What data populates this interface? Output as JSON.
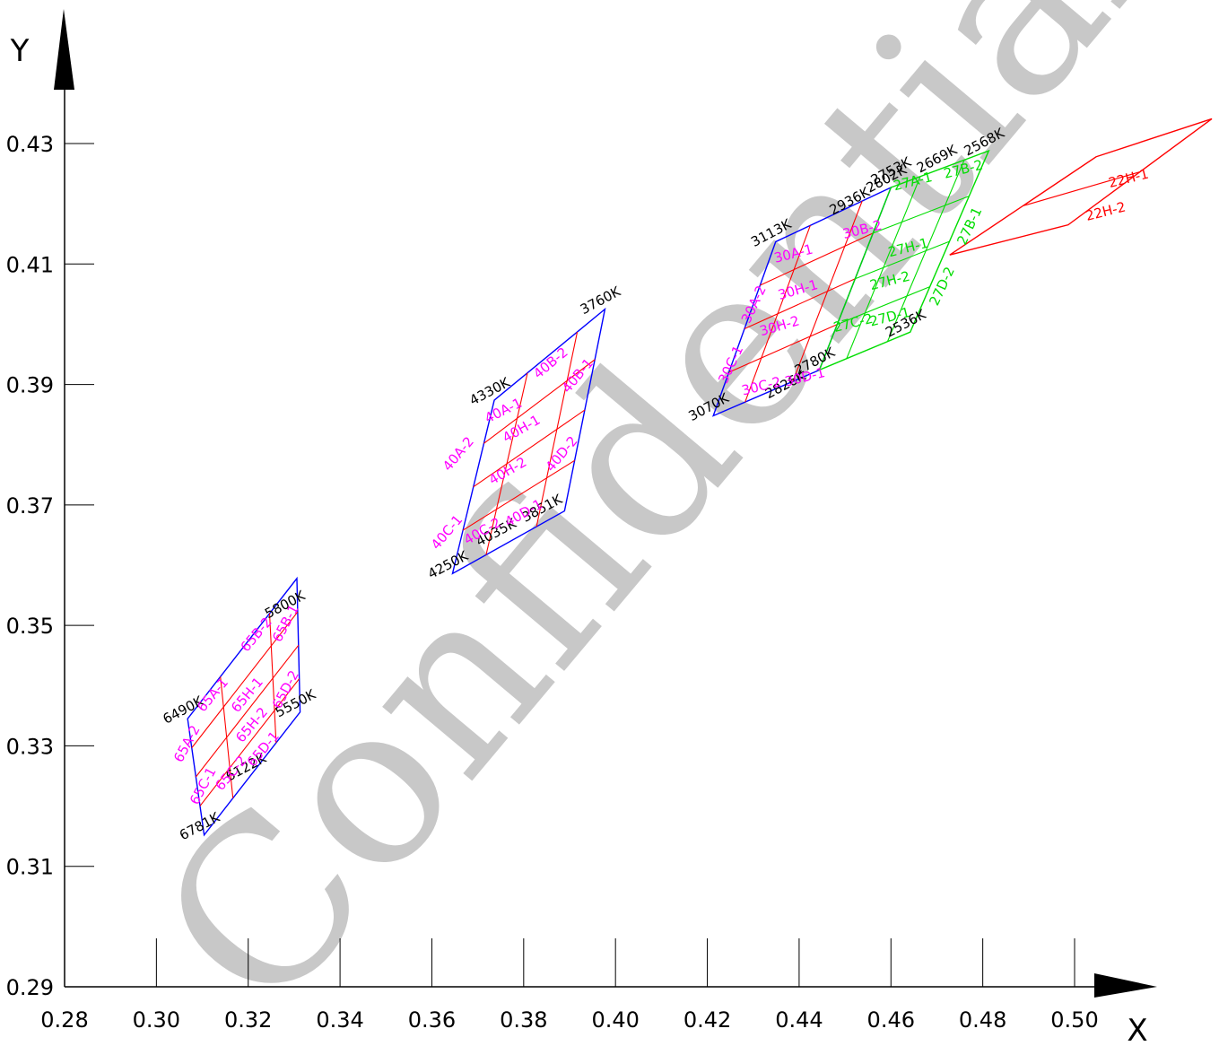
{
  "chart_data": {
    "type": "scatter",
    "title": "",
    "xlabel": "X",
    "ylabel": "Y",
    "xlim": [
      0.28,
      0.51
    ],
    "ylim": [
      0.29,
      0.43
    ],
    "x_ticks": [
      "0.28",
      "0.30",
      "0.32",
      "0.34",
      "0.36",
      "0.38",
      "0.40",
      "0.42",
      "0.44",
      "0.46",
      "0.48",
      "0.50"
    ],
    "y_ticks": [
      "0.29",
      "0.31",
      "0.33",
      "0.35",
      "0.37",
      "0.39",
      "0.41",
      "0.43"
    ],
    "watermark": "Confidential",
    "colors": {
      "blue": "#0000ff",
      "red": "#ff0000",
      "green": "#00dd00",
      "magenta": "#ff00ff",
      "axis": "#000000",
      "watermark": "#c8c8c8"
    },
    "quadrangles": [
      {
        "group": "65",
        "color": "blue",
        "points": [
          [
            0.3068,
            0.3345
          ],
          [
            0.3306,
            0.3578
          ],
          [
            0.3313,
            0.3356
          ],
          [
            0.3104,
            0.3152
          ]
        ]
      },
      {
        "group": "40",
        "color": "blue",
        "points": [
          [
            0.3736,
            0.3874
          ],
          [
            0.3977,
            0.4025
          ],
          [
            0.3889,
            0.369
          ],
          [
            0.3645,
            0.3586
          ]
        ]
      },
      {
        "group": "30",
        "color": "blue",
        "points": [
          [
            0.4349,
            0.4137
          ],
          [
            0.46,
            0.4227
          ],
          [
            0.4444,
            0.3924
          ],
          [
            0.4213,
            0.3848
          ]
        ]
      },
      {
        "group": "27",
        "color": "green",
        "points": [
          [
            0.46,
            0.4227
          ],
          [
            0.4813,
            0.4288
          ],
          [
            0.4642,
            0.3987
          ],
          [
            0.4444,
            0.3924
          ]
        ]
      },
      {
        "group": "22",
        "color": "red",
        "points": [
          [
            0.5047,
            0.4278
          ],
          [
            0.5299,
            0.4341
          ],
          [
            0.4986,
            0.4165
          ],
          [
            0.4728,
            0.4115
          ]
        ]
      }
    ],
    "point_labels": [
      {
        "text": "6490K",
        "x": 0.3068,
        "y": 0.3345
      },
      {
        "text": "5800K",
        "x": 0.329,
        "y": 0.352
      },
      {
        "text": "5550K",
        "x": 0.3313,
        "y": 0.3356
      },
      {
        "text": "6122K",
        "x": 0.3205,
        "y": 0.325
      },
      {
        "text": "6781K",
        "x": 0.3104,
        "y": 0.3152
      },
      {
        "text": "4330K",
        "x": 0.3736,
        "y": 0.3874
      },
      {
        "text": "3760K",
        "x": 0.3977,
        "y": 0.4025
      },
      {
        "text": "3851K",
        "x": 0.385,
        "y": 0.368
      },
      {
        "text": "4035K",
        "x": 0.375,
        "y": 0.364
      },
      {
        "text": "4250K",
        "x": 0.3645,
        "y": 0.3586
      },
      {
        "text": "3113K",
        "x": 0.4349,
        "y": 0.4137
      },
      {
        "text": "2936K",
        "x": 0.452,
        "y": 0.419
      },
      {
        "text": "2802K",
        "x": 0.46,
        "y": 0.4227
      },
      {
        "text": "2753K",
        "x": 0.461,
        "y": 0.424
      },
      {
        "text": "2669K",
        "x": 0.471,
        "y": 0.426
      },
      {
        "text": "2568K",
        "x": 0.4813,
        "y": 0.4288
      },
      {
        "text": "2536K",
        "x": 0.4642,
        "y": 0.3987
      },
      {
        "text": "2780K",
        "x": 0.4444,
        "y": 0.3924
      },
      {
        "text": "2826K",
        "x": 0.438,
        "y": 0.3885
      },
      {
        "text": "3070K",
        "x": 0.4213,
        "y": 0.3848
      }
    ],
    "bin_labels": [
      {
        "text": "65A-1",
        "color": "magenta",
        "x": 0.313,
        "y": 0.338,
        "angle": -50
      },
      {
        "text": "65A-2",
        "color": "magenta",
        "x": 0.3075,
        "y": 0.33,
        "angle": -62
      },
      {
        "text": "65B-2",
        "color": "magenta",
        "x": 0.3225,
        "y": 0.348,
        "angle": -50
      },
      {
        "text": "65B-1",
        "color": "magenta",
        "x": 0.329,
        "y": 0.35,
        "angle": -62
      },
      {
        "text": "65H-1",
        "color": "magenta",
        "x": 0.3205,
        "y": 0.338,
        "angle": -50
      },
      {
        "text": "65H-2",
        "color": "magenta",
        "x": 0.3215,
        "y": 0.333,
        "angle": -50
      },
      {
        "text": "65C-1",
        "color": "magenta",
        "x": 0.311,
        "y": 0.323,
        "angle": -62
      },
      {
        "text": "65C-2",
        "color": "magenta",
        "x": 0.317,
        "y": 0.325,
        "angle": -50
      },
      {
        "text": "65D-1",
        "color": "magenta",
        "x": 0.324,
        "y": 0.329,
        "angle": -50
      },
      {
        "text": "65D-2",
        "color": "magenta",
        "x": 0.329,
        "y": 0.339,
        "angle": -62
      },
      {
        "text": "40A-1",
        "color": "magenta",
        "x": 0.376,
        "y": 0.385,
        "angle": -26
      },
      {
        "text": "40A-2",
        "color": "magenta",
        "x": 0.3665,
        "y": 0.378,
        "angle": -50
      },
      {
        "text": "40B-2",
        "color": "magenta",
        "x": 0.3865,
        "y": 0.393,
        "angle": -40
      },
      {
        "text": "40B-1",
        "color": "magenta",
        "x": 0.3925,
        "y": 0.391,
        "angle": -50
      },
      {
        "text": "40H-1",
        "color": "magenta",
        "x": 0.38,
        "y": 0.382,
        "angle": -30
      },
      {
        "text": "40H-2",
        "color": "magenta",
        "x": 0.377,
        "y": 0.375,
        "angle": -30
      },
      {
        "text": "40D-2",
        "color": "magenta",
        "x": 0.389,
        "y": 0.378,
        "angle": -50
      },
      {
        "text": "40C-1",
        "color": "magenta",
        "x": 0.364,
        "y": 0.365,
        "angle": -50
      },
      {
        "text": "40C-2",
        "color": "magenta",
        "x": 0.3715,
        "y": 0.365,
        "angle": -30
      },
      {
        "text": "40D-1",
        "color": "magenta",
        "x": 0.3805,
        "y": 0.368,
        "angle": -30
      },
      {
        "text": "30A-1",
        "color": "magenta",
        "x": 0.439,
        "y": 0.411,
        "angle": -14
      },
      {
        "text": "30A-2",
        "color": "magenta",
        "x": 0.431,
        "y": 0.403,
        "angle": -65
      },
      {
        "text": "30B-2",
        "color": "magenta",
        "x": 0.454,
        "y": 0.415,
        "angle": -14
      },
      {
        "text": "30H-1",
        "color": "magenta",
        "x": 0.44,
        "y": 0.405,
        "angle": -16
      },
      {
        "text": "30H-2",
        "color": "magenta",
        "x": 0.436,
        "y": 0.399,
        "angle": -16
      },
      {
        "text": "30C-1",
        "color": "magenta",
        "x": 0.426,
        "y": 0.393,
        "angle": -65
      },
      {
        "text": "30C-2",
        "color": "magenta",
        "x": 0.432,
        "y": 0.389,
        "angle": -14
      },
      {
        "text": "30D-1",
        "color": "magenta",
        "x": 0.4415,
        "y": 0.3905,
        "angle": -14
      },
      {
        "text": "27A-1",
        "color": "green",
        "x": 0.465,
        "y": 0.423,
        "angle": -14
      },
      {
        "text": "27B-2",
        "color": "green",
        "x": 0.476,
        "y": 0.425,
        "angle": -14
      },
      {
        "text": "27B-1",
        "color": "green",
        "x": 0.478,
        "y": 0.416,
        "angle": -65
      },
      {
        "text": "27H-1",
        "color": "green",
        "x": 0.464,
        "y": 0.412,
        "angle": -14
      },
      {
        "text": "27H-2",
        "color": "green",
        "x": 0.46,
        "y": 0.4065,
        "angle": -14
      },
      {
        "text": "27C-2",
        "color": "green",
        "x": 0.452,
        "y": 0.3995,
        "angle": -14
      },
      {
        "text": "27D-1",
        "color": "green",
        "x": 0.46,
        "y": 0.4005,
        "angle": -14
      },
      {
        "text": "27D-2",
        "color": "green",
        "x": 0.472,
        "y": 0.406,
        "angle": -65
      },
      {
        "text": "22H-1",
        "color": "red",
        "x": 0.512,
        "y": 0.4235,
        "angle": -14
      },
      {
        "text": "22H-2",
        "color": "red",
        "x": 0.507,
        "y": 0.418,
        "angle": -14
      }
    ]
  }
}
